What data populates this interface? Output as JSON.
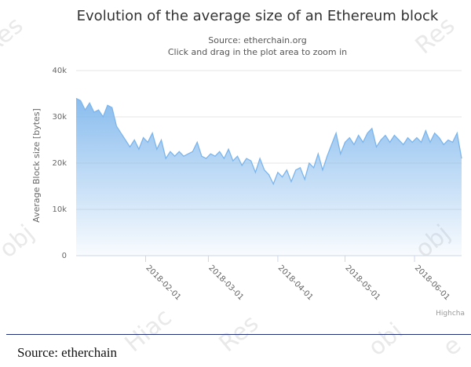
{
  "chart_data": {
    "type": "area",
    "title": "Evolution of the average size of an Ethereum block",
    "subtitle": "Source: etherchain.org",
    "subtitle2": "Click and drag in the plot area to zoom in",
    "ylabel": "Average Block size [bytes]",
    "xlabel": "",
    "ylim": [
      0,
      40000
    ],
    "yticks": [
      0,
      10000,
      20000,
      30000,
      40000
    ],
    "ytick_labels": [
      "0",
      "10k",
      "20k",
      "30k",
      "40k"
    ],
    "xlim": [
      "2018-01-01",
      "2018-06-22"
    ],
    "xticks": [
      "2018-02-01",
      "2018-03-01",
      "2018-04-01",
      "2018-05-01",
      "2018-06-01"
    ],
    "grid": true,
    "series": [
      {
        "name": "",
        "color": "#7cb5ec",
        "x": [
          "2018-01-01",
          "2018-01-03",
          "2018-01-05",
          "2018-01-07",
          "2018-01-09",
          "2018-01-11",
          "2018-01-13",
          "2018-01-15",
          "2018-01-17",
          "2018-01-19",
          "2018-01-21",
          "2018-01-23",
          "2018-01-25",
          "2018-01-27",
          "2018-01-29",
          "2018-01-31",
          "2018-02-02",
          "2018-02-04",
          "2018-02-06",
          "2018-02-08",
          "2018-02-10",
          "2018-02-12",
          "2018-02-14",
          "2018-02-16",
          "2018-02-18",
          "2018-02-20",
          "2018-02-22",
          "2018-02-24",
          "2018-02-26",
          "2018-02-28",
          "2018-03-02",
          "2018-03-04",
          "2018-03-06",
          "2018-03-08",
          "2018-03-10",
          "2018-03-12",
          "2018-03-14",
          "2018-03-16",
          "2018-03-18",
          "2018-03-20",
          "2018-03-22",
          "2018-03-24",
          "2018-03-26",
          "2018-03-28",
          "2018-03-30",
          "2018-04-01",
          "2018-04-03",
          "2018-04-05",
          "2018-04-07",
          "2018-04-09",
          "2018-04-11",
          "2018-04-13",
          "2018-04-15",
          "2018-04-17",
          "2018-04-19",
          "2018-04-21",
          "2018-04-23",
          "2018-04-25",
          "2018-04-27",
          "2018-04-29",
          "2018-05-01",
          "2018-05-03",
          "2018-05-05",
          "2018-05-07",
          "2018-05-09",
          "2018-05-11",
          "2018-05-13",
          "2018-05-15",
          "2018-05-17",
          "2018-05-19",
          "2018-05-21",
          "2018-05-23",
          "2018-05-25",
          "2018-05-27",
          "2018-05-29",
          "2018-05-31",
          "2018-06-02",
          "2018-06-04",
          "2018-06-06",
          "2018-06-08",
          "2018-06-10",
          "2018-06-12",
          "2018-06-14",
          "2018-06-16",
          "2018-06-18",
          "2018-06-20",
          "2018-06-22"
        ],
        "values": [
          34000,
          33500,
          31500,
          33000,
          31000,
          31500,
          30000,
          32500,
          32000,
          28000,
          26500,
          25000,
          23500,
          25000,
          23000,
          25500,
          24500,
          26500,
          23000,
          25000,
          21000,
          22500,
          21500,
          22500,
          21500,
          22000,
          22500,
          24500,
          21500,
          21000,
          22000,
          21500,
          22500,
          21000,
          23000,
          20500,
          21500,
          19500,
          21000,
          20500,
          18000,
          21000,
          18500,
          17500,
          15500,
          18000,
          17000,
          18500,
          16000,
          18500,
          19000,
          16500,
          20000,
          19000,
          22000,
          18500,
          21500,
          24000,
          26500,
          22000,
          24500,
          25500,
          24000,
          26000,
          24500,
          26500,
          27500,
          23500,
          25000,
          26000,
          24500,
          26000,
          25000,
          24000,
          25500,
          24500,
          25500,
          24500,
          27000,
          24500,
          26500,
          25500,
          24000,
          25000,
          24500,
          26500,
          21000
        ]
      }
    ],
    "credits": "Highcha"
  },
  "caption": "Source: etherchain",
  "watermark": [
    "Res",
    "Res",
    "obj",
    "obj",
    "Hiac",
    "Res",
    "obi",
    "e"
  ]
}
